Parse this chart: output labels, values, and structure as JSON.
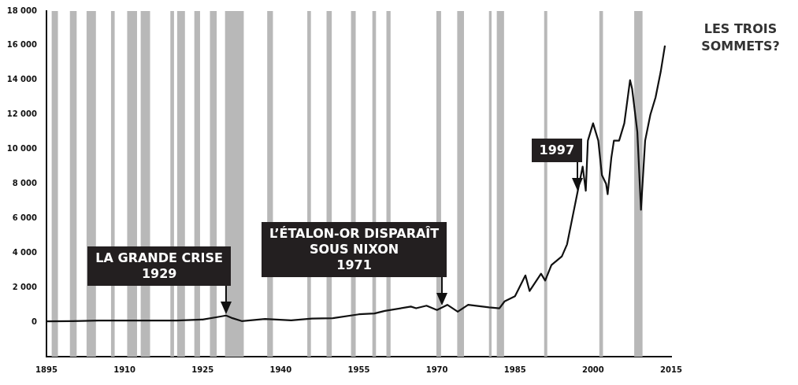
{
  "chart_data": {
    "type": "line",
    "title": "LES TROIS SOMMETS?",
    "x": [
      1895,
      1900,
      1905,
      1910,
      1915,
      1920,
      1925,
      1928,
      1929.5,
      1930.5,
      1932.5,
      1937,
      1942,
      1946,
      1950,
      1955,
      1958,
      1960,
      1965,
      1966,
      1968,
      1970,
      1971,
      1972,
      1974,
      1976,
      1980,
      1982,
      1983,
      1985,
      1987,
      1987.8,
      1990,
      1990.8,
      1992,
      1994,
      1995,
      1996,
      1997,
      1998,
      1998.6,
      1999,
      2000,
      2001,
      2001.7,
      2002.5,
      2002.8,
      2003.5,
      2004,
      2005,
      2006,
      2007.1,
      2007.5,
      2008.5,
      2009.2,
      2010,
      2011,
      2012,
      2013,
      2013.8
    ],
    "series": [
      {
        "color": "#111111",
        "values": [
          40,
          60,
          90,
          90,
          90,
          90,
          150,
          300,
          380,
          250,
          60,
          180,
          100,
          200,
          230,
          450,
          500,
          650,
          900,
          800,
          950,
          700,
          850,
          1000,
          600,
          1000,
          850,
          800,
          1200,
          1500,
          2700,
          1800,
          2800,
          2400,
          3300,
          3800,
          4500,
          6000,
          7500,
          9000,
          7600,
          10500,
          11500,
          10500,
          8500,
          8000,
          7400,
          9500,
          10500,
          10500,
          11500,
          14000,
          13500,
          11000,
          6500,
          10500,
          12000,
          13000,
          14500,
          16000
        ]
      }
    ],
    "xlim": [
      1895,
      2015
    ],
    "xticks": [
      1895,
      1910,
      1925,
      1940,
      1955,
      1970,
      1985,
      2000,
      2015
    ],
    "ylim": [
      -2000,
      18000
    ],
    "yticks": [
      {
        "value": 0,
        "label": "0"
      },
      {
        "value": 2000,
        "label": "2 000"
      },
      {
        "value": 4000,
        "label": "4 000"
      },
      {
        "value": 6000,
        "label": "6 000"
      },
      {
        "value": 8000,
        "label": "8 000"
      },
      {
        "value": 10000,
        "label": "10 000"
      },
      {
        "value": 12000,
        "label": "12 000"
      },
      {
        "value": 14000,
        "label": "14 000"
      },
      {
        "value": 16000,
        "label": "16 000"
      },
      {
        "value": 18000,
        "label": "18 000"
      }
    ],
    "grid": false,
    "legend": false,
    "marker": "none",
    "line_style": "solid",
    "bands": [
      {
        "axis": "x",
        "from": 1896,
        "to": 1897.2,
        "color": "#b8b8b8"
      },
      {
        "axis": "x",
        "from": 1899.5,
        "to": 1900.8,
        "color": "#b8b8b8"
      },
      {
        "axis": "x",
        "from": 1902.7,
        "to": 1904.5,
        "color": "#b8b8b8"
      },
      {
        "axis": "x",
        "from": 1907.4,
        "to": 1908.1,
        "color": "#b8b8b8"
      },
      {
        "axis": "x",
        "from": 1910.5,
        "to": 1912.4,
        "color": "#b8b8b8"
      },
      {
        "axis": "x",
        "from": 1913.1,
        "to": 1914.9,
        "color": "#b8b8b8"
      },
      {
        "axis": "x",
        "from": 1918.8,
        "to": 1919.5,
        "color": "#b8b8b8"
      },
      {
        "axis": "x",
        "from": 1920.1,
        "to": 1921.6,
        "color": "#b8b8b8"
      },
      {
        "axis": "x",
        "from": 1923.4,
        "to": 1924.5,
        "color": "#b8b8b8"
      },
      {
        "axis": "x",
        "from": 1926.4,
        "to": 1927.7,
        "color": "#b8b8b8"
      },
      {
        "axis": "x",
        "from": 1929.3,
        "to": 1932.9,
        "color": "#b8b8b8"
      },
      {
        "axis": "x",
        "from": 1937.4,
        "to": 1938.5,
        "color": "#b8b8b8"
      },
      {
        "axis": "x",
        "from": 1945.1,
        "to": 1945.8,
        "color": "#b8b8b8"
      },
      {
        "axis": "x",
        "from": 1948.8,
        "to": 1949.8,
        "color": "#b8b8b8"
      },
      {
        "axis": "x",
        "from": 1953.5,
        "to": 1954.4,
        "color": "#b8b8b8"
      },
      {
        "axis": "x",
        "from": 1957.6,
        "to": 1958.3,
        "color": "#b8b8b8"
      },
      {
        "axis": "x",
        "from": 1960.3,
        "to": 1961.1,
        "color": "#b8b8b8"
      },
      {
        "axis": "x",
        "from": 1969.9,
        "to": 1970.8,
        "color": "#b8b8b8"
      },
      {
        "axis": "x",
        "from": 1973.9,
        "to": 1975.2,
        "color": "#b8b8b8"
      },
      {
        "axis": "x",
        "from": 1980,
        "to": 1980.5,
        "color": "#b8b8b8"
      },
      {
        "axis": "x",
        "from": 1981.5,
        "to": 1982.9,
        "color": "#b8b8b8"
      },
      {
        "axis": "x",
        "from": 1990.6,
        "to": 1991.2,
        "color": "#b8b8b8"
      },
      {
        "axis": "x",
        "from": 2001.2,
        "to": 2001.9,
        "color": "#b8b8b8"
      },
      {
        "axis": "x",
        "from": 2007.9,
        "to": 2009.5,
        "color": "#b8b8b8"
      }
    ],
    "annotations": [
      {
        "text": "LA GRANDE CRISE\n1929",
        "x": 1929.5,
        "y": 380
      },
      {
        "text": "L’ÉTALON-OR DISPARAÎT\nSOUS NIXON\n1971",
        "x": 1971,
        "y": 850
      },
      {
        "text": "1997",
        "x": 1997,
        "y": 7500
      }
    ]
  }
}
